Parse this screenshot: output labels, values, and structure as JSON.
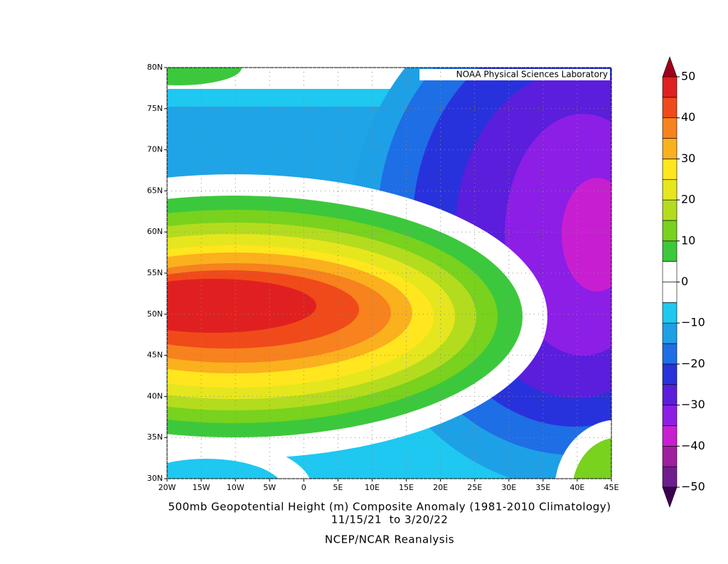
{
  "credit": "NOAA Physical Sciences Laboratory",
  "title": "500mb Geopotential Height (m) Composite Anomaly (1981-2010 Climatology)",
  "subtitle": "11/15/21  to 3/20/22",
  "source": "NCEP/NCAR Reanalysis",
  "map": {
    "xlim": [
      -20,
      45
    ],
    "ylim": [
      30,
      80
    ],
    "xticks": [
      {
        "value": -20,
        "label": "20W"
      },
      {
        "value": -15,
        "label": "15W"
      },
      {
        "value": -10,
        "label": "10W"
      },
      {
        "value": -5,
        "label": "5W"
      },
      0,
      {
        "value": 5,
        "label": "5E"
      },
      {
        "value": 10,
        "label": "10E"
      },
      {
        "value": 15,
        "label": "15E"
      },
      {
        "value": 20,
        "label": "20E"
      },
      {
        "value": 25,
        "label": "25E"
      },
      {
        "value": 30,
        "label": "30E"
      },
      {
        "value": 35,
        "label": "35E"
      },
      {
        "value": 40,
        "label": "40E"
      },
      {
        "value": 45,
        "label": "45E"
      }
    ],
    "yticks": [
      {
        "value": 30,
        "label": "30N"
      },
      {
        "value": 35,
        "label": "35N"
      },
      {
        "value": 40,
        "label": "40N"
      },
      {
        "value": 45,
        "label": "45N"
      },
      {
        "value": 50,
        "label": "50N"
      },
      {
        "value": 55,
        "label": "55N"
      },
      {
        "value": 60,
        "label": "60N"
      },
      {
        "value": 65,
        "label": "65N"
      },
      {
        "value": 70,
        "label": "70N"
      },
      {
        "value": 75,
        "label": "75N"
      },
      {
        "value": 80,
        "label": "80N"
      }
    ],
    "grid": true
  },
  "colorbar": {
    "lim": [
      -50,
      50
    ],
    "levels": [
      -50,
      -45,
      -40,
      -35,
      -30,
      -25,
      -20,
      -15,
      -10,
      -5,
      0,
      5,
      10,
      15,
      20,
      25,
      30,
      35,
      40,
      45,
      50
    ],
    "colors": [
      "#6e1e8c",
      "#a01ea0",
      "#c81ed2",
      "#8c1ee6",
      "#5a1edc",
      "#2832dc",
      "#1e6ee6",
      "#1ea0e6",
      "#1ec8f0",
      "#ffffff",
      "#ffffff",
      "#3cc83c",
      "#78d21e",
      "#b4dc1e",
      "#e6e61e",
      "#ffe61e",
      "#fbb01e",
      "#f7821e",
      "#f04a1a",
      "#e02020"
    ],
    "under_color": "#3c0050",
    "over_color": "#a0001e",
    "ticks": [
      {
        "value": -50,
        "label": "−50"
      },
      {
        "value": -40,
        "label": "−40"
      },
      {
        "value": -30,
        "label": "−30"
      },
      {
        "value": -20,
        "label": "−20"
      },
      {
        "value": -10,
        "label": "−10"
      },
      0,
      10,
      20,
      30,
      40,
      50
    ]
  }
}
